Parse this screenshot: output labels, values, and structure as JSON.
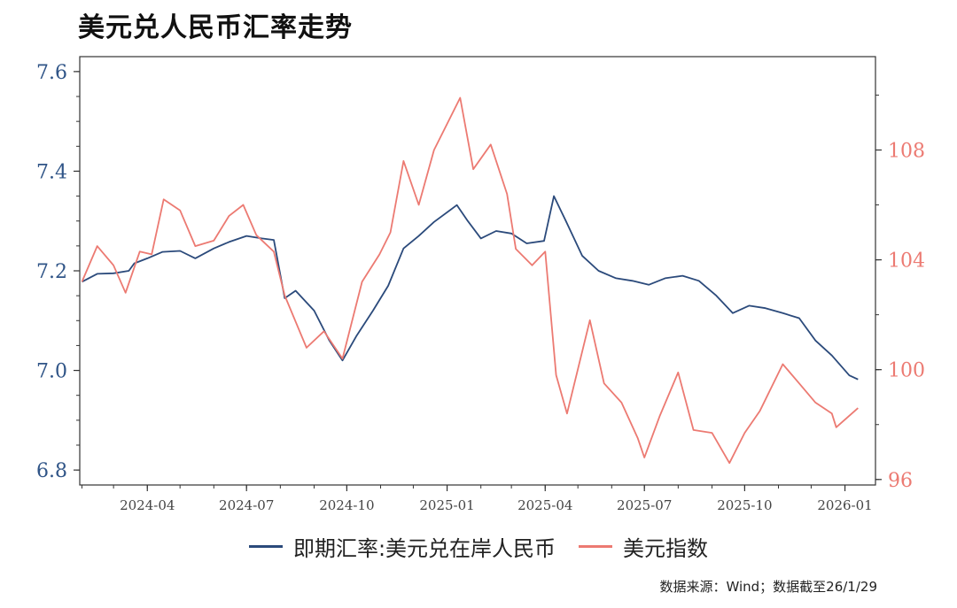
{
  "chart_data": {
    "type": "line",
    "title": "美元兑人民币汇率走势",
    "x_tick_labels": [
      "2024-04",
      "2024-07",
      "2024-10",
      "2025-01",
      "2025-04",
      "2025-07",
      "2025-10",
      "2026-01"
    ],
    "left_axis": {
      "ylim": [
        6.77,
        7.63
      ],
      "ticks": [
        6.8,
        7.0,
        7.2,
        7.4,
        7.6
      ],
      "color": "#2f5487"
    },
    "right_axis": {
      "ylim": [
        95.8,
        111.4
      ],
      "ticks": [
        96,
        100,
        104,
        108
      ],
      "color": "#ec7a72"
    },
    "series": [
      {
        "name": "即期汇率:美元兑在岸人民币",
        "axis": "left",
        "color": "#2b4a7b",
        "points": [
          [
            "2024-02-01",
            7.178
          ],
          [
            "2024-02-15",
            7.194
          ],
          [
            "2024-03-01",
            7.195
          ],
          [
            "2024-03-15",
            7.2
          ],
          [
            "2024-03-20",
            7.215
          ],
          [
            "2024-04-01",
            7.225
          ],
          [
            "2024-04-15",
            7.238
          ],
          [
            "2024-05-01",
            7.24
          ],
          [
            "2024-05-15",
            7.225
          ],
          [
            "2024-06-01",
            7.245
          ],
          [
            "2024-06-15",
            7.258
          ],
          [
            "2024-07-01",
            7.27
          ],
          [
            "2024-07-15",
            7.265
          ],
          [
            "2024-07-26",
            7.262
          ],
          [
            "2024-08-05",
            7.145
          ],
          [
            "2024-08-15",
            7.16
          ],
          [
            "2024-09-01",
            7.12
          ],
          [
            "2024-09-15",
            7.06
          ],
          [
            "2024-09-27",
            7.02
          ],
          [
            "2024-10-10",
            7.07
          ],
          [
            "2024-10-25",
            7.12
          ],
          [
            "2024-11-08",
            7.17
          ],
          [
            "2024-11-22",
            7.245
          ],
          [
            "2024-12-06",
            7.27
          ],
          [
            "2024-12-20",
            7.298
          ],
          [
            "2025-01-10",
            7.332
          ],
          [
            "2025-01-20",
            7.3
          ],
          [
            "2025-02-01",
            7.265
          ],
          [
            "2025-02-15",
            7.28
          ],
          [
            "2025-03-01",
            7.275
          ],
          [
            "2025-03-15",
            7.255
          ],
          [
            "2025-03-31",
            7.26
          ],
          [
            "2025-04-09",
            7.35
          ],
          [
            "2025-04-20",
            7.3
          ],
          [
            "2025-05-05",
            7.23
          ],
          [
            "2025-05-20",
            7.2
          ],
          [
            "2025-06-05",
            7.185
          ],
          [
            "2025-06-20",
            7.18
          ],
          [
            "2025-07-05",
            7.172
          ],
          [
            "2025-07-20",
            7.185
          ],
          [
            "2025-08-05",
            7.19
          ],
          [
            "2025-08-20",
            7.18
          ],
          [
            "2025-09-05",
            7.15
          ],
          [
            "2025-09-20",
            7.115
          ],
          [
            "2025-10-05",
            7.13
          ],
          [
            "2025-10-20",
            7.125
          ],
          [
            "2025-11-05",
            7.115
          ],
          [
            "2025-11-20",
            7.105
          ],
          [
            "2025-12-05",
            7.06
          ],
          [
            "2025-12-20",
            7.03
          ],
          [
            "2026-01-05",
            6.99
          ],
          [
            "2026-01-13",
            6.982
          ]
        ]
      },
      {
        "name": "美元指数",
        "axis": "right",
        "color": "#ec7a72",
        "points": [
          [
            "2024-02-01",
            103.2
          ],
          [
            "2024-02-15",
            104.5
          ],
          [
            "2024-03-01",
            103.8
          ],
          [
            "2024-03-12",
            102.8
          ],
          [
            "2024-03-25",
            104.3
          ],
          [
            "2024-04-05",
            104.2
          ],
          [
            "2024-04-16",
            106.2
          ],
          [
            "2024-05-01",
            105.8
          ],
          [
            "2024-05-15",
            104.5
          ],
          [
            "2024-06-01",
            104.7
          ],
          [
            "2024-06-15",
            105.6
          ],
          [
            "2024-06-28",
            106.0
          ],
          [
            "2024-07-10",
            104.9
          ],
          [
            "2024-07-26",
            104.3
          ],
          [
            "2024-08-05",
            102.7
          ],
          [
            "2024-08-25",
            100.8
          ],
          [
            "2024-09-10",
            101.4
          ],
          [
            "2024-09-27",
            100.4
          ],
          [
            "2024-10-15",
            103.2
          ],
          [
            "2024-10-31",
            104.2
          ],
          [
            "2024-11-10",
            105.0
          ],
          [
            "2024-11-22",
            107.6
          ],
          [
            "2024-12-06",
            106.0
          ],
          [
            "2024-12-20",
            108.0
          ],
          [
            "2025-01-13",
            109.9
          ],
          [
            "2025-01-25",
            107.3
          ],
          [
            "2025-02-10",
            108.2
          ],
          [
            "2025-02-25",
            106.4
          ],
          [
            "2025-03-05",
            104.4
          ],
          [
            "2025-03-20",
            103.8
          ],
          [
            "2025-04-01",
            104.3
          ],
          [
            "2025-04-11",
            99.8
          ],
          [
            "2025-04-21",
            98.4
          ],
          [
            "2025-05-12",
            101.8
          ],
          [
            "2025-05-25",
            99.5
          ],
          [
            "2025-06-10",
            98.8
          ],
          [
            "2025-06-25",
            97.5
          ],
          [
            "2025-07-01",
            96.8
          ],
          [
            "2025-07-15",
            98.3
          ],
          [
            "2025-08-01",
            99.9
          ],
          [
            "2025-08-15",
            97.8
          ],
          [
            "2025-09-01",
            97.7
          ],
          [
            "2025-09-17",
            96.6
          ],
          [
            "2025-10-01",
            97.7
          ],
          [
            "2025-10-15",
            98.5
          ],
          [
            "2025-11-05",
            100.2
          ],
          [
            "2025-11-20",
            99.5
          ],
          [
            "2025-12-05",
            98.8
          ],
          [
            "2025-12-20",
            98.4
          ],
          [
            "2025-12-24",
            97.9
          ],
          [
            "2026-01-13",
            98.6
          ]
        ]
      }
    ]
  },
  "source_note": "数据来源：Wind；数据截至26/1/29"
}
